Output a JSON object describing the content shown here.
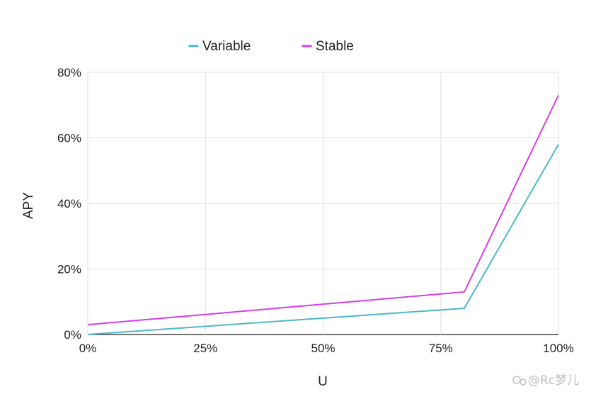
{
  "chart_data": {
    "type": "line",
    "x": [
      0,
      80,
      100
    ],
    "series": [
      {
        "name": "Variable",
        "color": "#4bb8c6",
        "values": [
          0,
          8,
          58
        ]
      },
      {
        "name": "Stable",
        "color": "#d63ee6",
        "values": [
          3,
          13,
          73
        ]
      }
    ],
    "xlabel": "U",
    "ylabel": "APY",
    "xlim": [
      0,
      100
    ],
    "ylim": [
      0,
      80
    ],
    "xticks": [
      0,
      25,
      50,
      75,
      100
    ],
    "xtick_labels": [
      "0%",
      "25%",
      "50%",
      "75%",
      "100%"
    ],
    "yticks": [
      0,
      20,
      40,
      60,
      80
    ],
    "ytick_labels": [
      "0%",
      "20%",
      "40%",
      "60%",
      "80%"
    ],
    "grid": true,
    "legend_position": "top-left",
    "watermark": "@Rc梦儿"
  }
}
